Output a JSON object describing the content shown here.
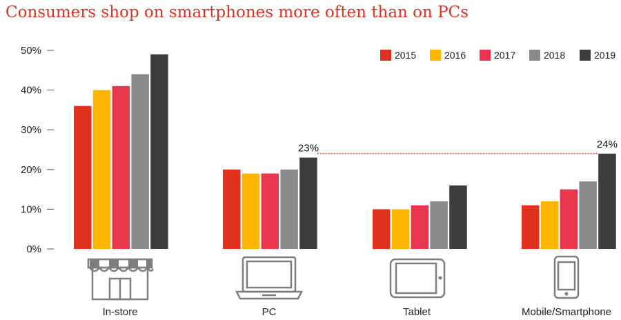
{
  "chart_data": {
    "type": "bar",
    "title": "Consumers shop on smartphones more often than on PCs",
    "categories": [
      "In-store",
      "PC",
      "Tablet",
      "Mobile/Smartphone"
    ],
    "series": [
      {
        "name": "2015",
        "color": "#e0301e",
        "values": [
          36,
          20,
          10,
          11
        ]
      },
      {
        "name": "2016",
        "color": "#ffb600",
        "values": [
          40,
          19,
          10,
          12
        ]
      },
      {
        "name": "2017",
        "color": "#e8374d",
        "values": [
          41,
          19,
          11,
          15
        ]
      },
      {
        "name": "2018",
        "color": "#8b8a8c",
        "values": [
          44,
          20,
          12,
          17
        ]
      },
      {
        "name": "2019",
        "color": "#3c3c3d",
        "values": [
          49,
          23,
          16,
          24
        ]
      }
    ],
    "y_ticks": [
      "0%",
      "10%",
      "20%",
      "30%",
      "40%",
      "50%"
    ],
    "ylim": [
      0,
      50
    ],
    "annotations": [
      {
        "category": "PC",
        "series": "2019",
        "label": "23%"
      },
      {
        "category": "Mobile/Smartphone",
        "series": "2019",
        "label": "24%"
      }
    ],
    "reference_line_color": "#e0301e",
    "category_icons": [
      "storefront-icon",
      "laptop-icon",
      "tablet-icon",
      "smartphone-icon"
    ],
    "legend_position": "top-right"
  }
}
